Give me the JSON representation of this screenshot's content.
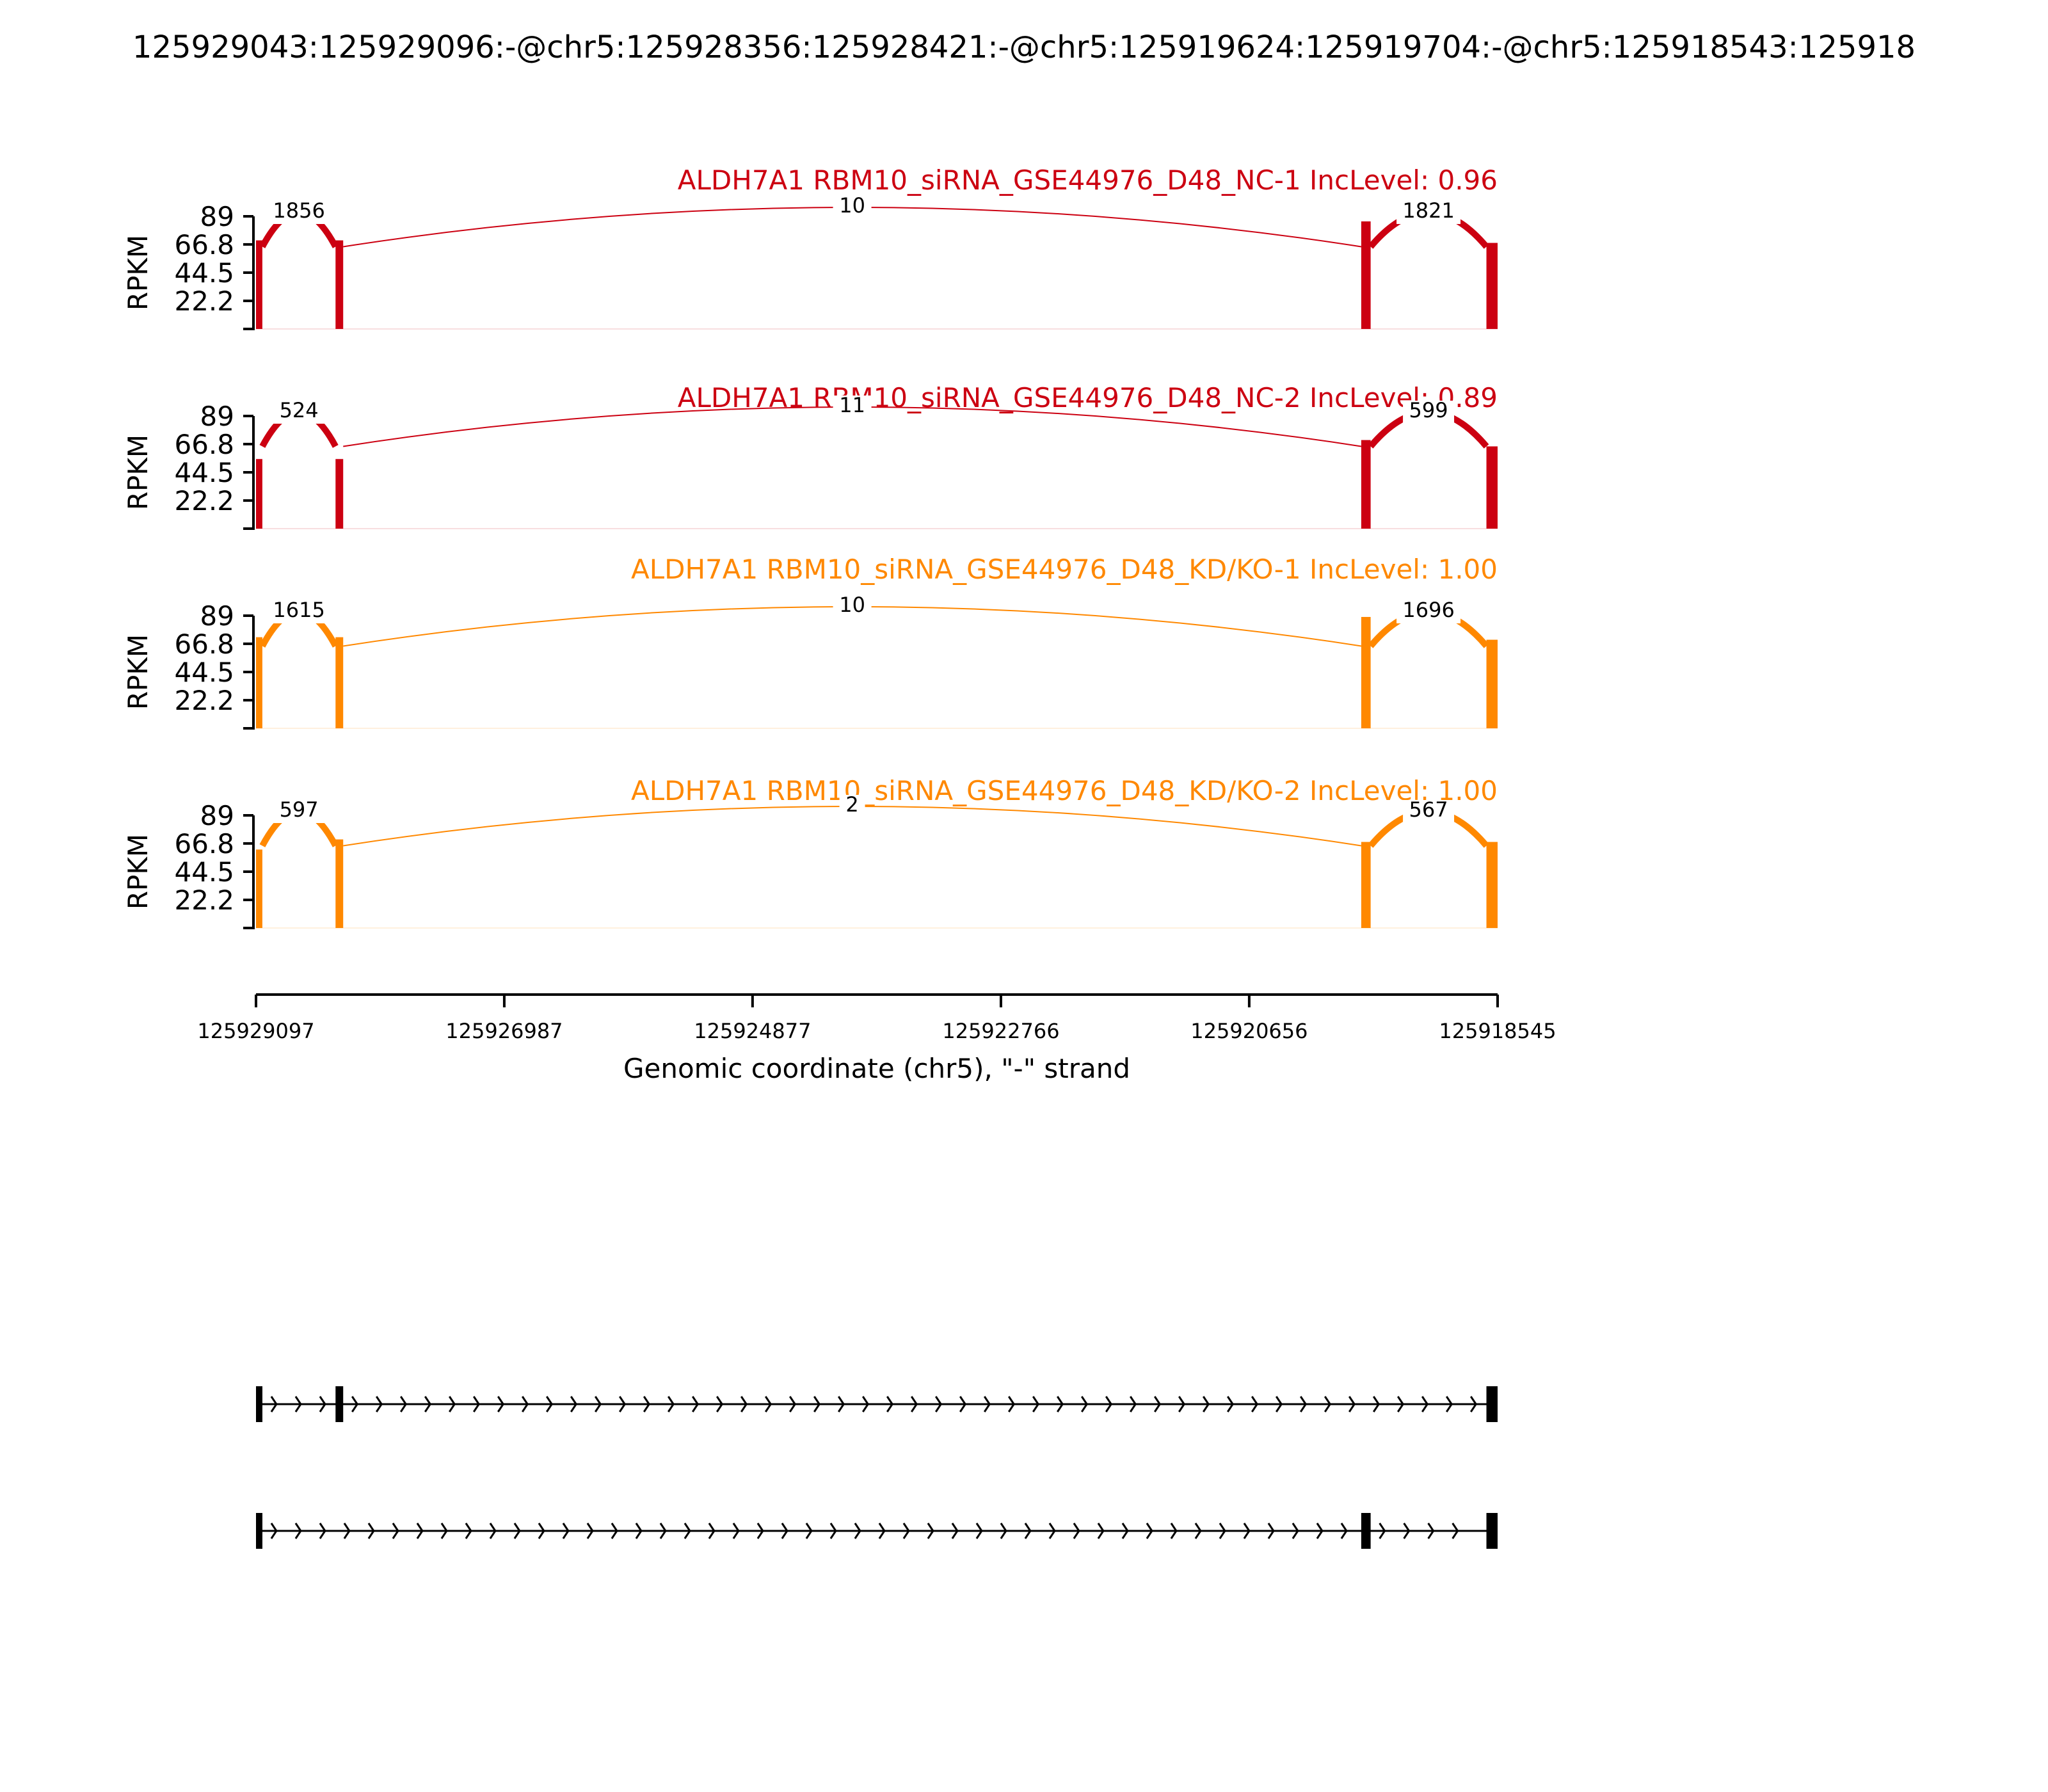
{
  "title": "125929043:125929096:-@chr5:125928356:125928421:-@chr5:125919624:125919704:-@chr5:125918543:125918",
  "colors": {
    "nc": "#cc0011",
    "kd": "#ff8800",
    "text": "#000000",
    "axis": "#000000"
  },
  "chart_data": {
    "type": "area",
    "subtype": "sashimi",
    "xlabel": "Genomic coordinate (chr5), \"-\" strand",
    "xlim": [
      125929097,
      125918545
    ],
    "xticks": [
      "125929097",
      "125926987",
      "125924877",
      "125922766",
      "125920656",
      "125918545"
    ],
    "ylabel": "RPKM",
    "ylim": [
      0,
      89
    ],
    "yticks": [
      "22.2",
      "44.5",
      "66.8",
      "89"
    ],
    "exons": [
      {
        "start": 125929097,
        "end": 125929043
      },
      {
        "start": 125928421,
        "end": 125928356
      },
      {
        "start": 125919704,
        "end": 125919624
      },
      {
        "start": 125918640,
        "end": 125918545
      }
    ],
    "samples": [
      {
        "label": "ALDH7A1 RBM10_siRNA_GSE44976_D48_NC-1 IncLevel: 0.96",
        "group": "nc",
        "coverage_rpkm": [
          70,
          70,
          85,
          68
        ],
        "junctions": [
          {
            "from": 125929043,
            "to": 125928421,
            "count": "1856",
            "side": "top"
          },
          {
            "from": 125928356,
            "to": 125919704,
            "count": "10",
            "side": "top"
          },
          {
            "from": 125919624,
            "to": 125918640,
            "count": "1821",
            "side": "top"
          }
        ]
      },
      {
        "label": "ALDH7A1 RBM10_siRNA_GSE44976_D48_NC-2 IncLevel: 0.89",
        "group": "nc",
        "coverage_rpkm": [
          55,
          55,
          70,
          65
        ],
        "junctions": [
          {
            "from": 125929043,
            "to": 125928421,
            "count": "524",
            "side": "top"
          },
          {
            "from": 125928356,
            "to": 125919704,
            "count": "11",
            "side": "top"
          },
          {
            "from": 125919624,
            "to": 125918640,
            "count": "599",
            "side": "top"
          }
        ]
      },
      {
        "label": "ALDH7A1 RBM10_siRNA_GSE44976_D48_KD/KO-1 IncLevel: 1.00",
        "group": "kd",
        "coverage_rpkm": [
          72,
          72,
          88,
          70
        ],
        "junctions": [
          {
            "from": 125929043,
            "to": 125928421,
            "count": "1615",
            "side": "top"
          },
          {
            "from": 125928356,
            "to": 125919704,
            "count": "10",
            "side": "top"
          },
          {
            "from": 125919624,
            "to": 125918640,
            "count": "1696",
            "side": "top"
          }
        ]
      },
      {
        "label": "ALDH7A1 RBM10_siRNA_GSE44976_D48_KD/KO-2 IncLevel: 1.00",
        "group": "kd",
        "coverage_rpkm": [
          62,
          70,
          68,
          68
        ],
        "junctions": [
          {
            "from": 125929043,
            "to": 125928421,
            "count": "597",
            "side": "top"
          },
          {
            "from": 125928356,
            "to": 125919704,
            "count": "2",
            "side": "top"
          },
          {
            "from": 125919624,
            "to": 125918640,
            "count": "567",
            "side": "top"
          }
        ]
      }
    ],
    "isoforms": [
      {
        "exons": [
          0,
          1,
          3
        ]
      },
      {
        "exons": [
          0,
          2,
          3
        ]
      }
    ]
  }
}
